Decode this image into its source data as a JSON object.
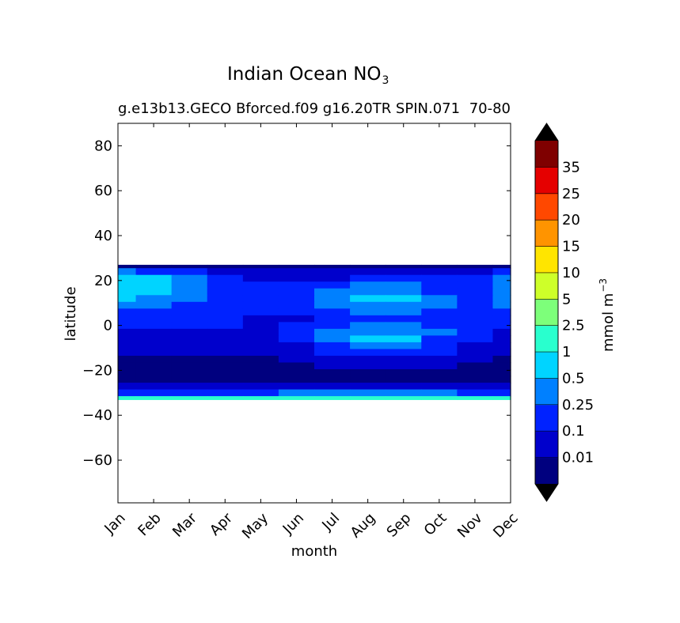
{
  "title": {
    "main": "Indian Ocean NO",
    "subscript": "3"
  },
  "subtitle_left": "g.e13b13.GECO Bforced.f09 g16.20TR SPIN.071",
  "subtitle_right": "70-80",
  "colorbar": {
    "unit_prefix": "mmol m",
    "unit_exponent": "−3",
    "labels": [
      "0.01",
      "0.1",
      "0.25",
      "0.5",
      "1",
      "2.5",
      "5",
      "10",
      "15",
      "20",
      "25",
      "35"
    ],
    "colors": [
      "#00007f",
      "#0000cc",
      "#0022ff",
      "#0080ff",
      "#00d4ff",
      "#29ffce",
      "#7dff7a",
      "#ceff29",
      "#ffe500",
      "#ff9400",
      "#ff4800",
      "#e50000",
      "#7f0000"
    ],
    "under_color": "#000000",
    "over_color": "#000000"
  },
  "chart_data": {
    "type": "heatmap",
    "title": "Indian Ocean NO3",
    "subtitle": "g.e13b13.GECO Bforced.f09 g16.20TR SPIN.071 70-80",
    "xlabel": "month",
    "ylabel": "latitude",
    "x_categories": [
      "Jan",
      "Feb",
      "Mar",
      "Apr",
      "May",
      "Jun",
      "Jul",
      "Aug",
      "Sep",
      "Oct",
      "Nov",
      "Dec"
    ],
    "y_ticks": [
      80,
      60,
      40,
      20,
      0,
      -20,
      -40,
      -60
    ],
    "ylim": [
      -79,
      90
    ],
    "units": "mmol m^-3",
    "levels": [
      0,
      0.01,
      0.1,
      0.25,
      0.5,
      1,
      2.5,
      5,
      10,
      15,
      20,
      25,
      35,
      40
    ],
    "lat": [
      27,
      24,
      21,
      18,
      15,
      12,
      9,
      6,
      3,
      0,
      -3,
      -6,
      -9,
      -12,
      -15,
      -18,
      -21,
      -24,
      -27,
      -30,
      -33
    ],
    "values": [
      [
        0.005,
        0.005,
        0.005,
        0.005,
        0.005,
        0.005,
        0.005,
        0.005,
        0.005,
        0.005,
        0.005,
        0.005
      ],
      [
        0.3,
        0.15,
        0.1,
        0.05,
        0.05,
        0.03,
        0.02,
        0.02,
        0.02,
        0.03,
        0.05,
        0.2
      ],
      [
        0.8,
        0.6,
        0.3,
        0.1,
        0.05,
        0.03,
        0.05,
        0.1,
        0.1,
        0.1,
        0.15,
        0.3
      ],
      [
        0.6,
        0.5,
        0.3,
        0.2,
        0.15,
        0.1,
        0.2,
        0.3,
        0.3,
        0.2,
        0.2,
        0.3
      ],
      [
        0.6,
        0.5,
        0.3,
        0.2,
        0.2,
        0.2,
        0.3,
        0.4,
        0.4,
        0.2,
        0.2,
        0.4
      ],
      [
        0.5,
        0.4,
        0.3,
        0.2,
        0.2,
        0.2,
        0.3,
        0.6,
        0.6,
        0.3,
        0.2,
        0.4
      ],
      [
        0.3,
        0.3,
        0.2,
        0.2,
        0.2,
        0.2,
        0.3,
        0.4,
        0.4,
        0.3,
        0.2,
        0.3
      ],
      [
        0.2,
        0.2,
        0.2,
        0.15,
        0.15,
        0.15,
        0.2,
        0.3,
        0.3,
        0.2,
        0.15,
        0.2
      ],
      [
        0.15,
        0.15,
        0.12,
        0.1,
        0.08,
        0.08,
        0.15,
        0.2,
        0.2,
        0.15,
        0.12,
        0.15
      ],
      [
        0.12,
        0.12,
        0.12,
        0.1,
        0.08,
        0.1,
        0.2,
        0.3,
        0.3,
        0.15,
        0.12,
        0.12
      ],
      [
        0.08,
        0.08,
        0.08,
        0.06,
        0.08,
        0.15,
        0.3,
        0.4,
        0.4,
        0.3,
        0.15,
        0.08
      ],
      [
        0.05,
        0.05,
        0.05,
        0.04,
        0.05,
        0.1,
        0.3,
        0.6,
        0.5,
        0.2,
        0.1,
        0.05
      ],
      [
        0.03,
        0.03,
        0.03,
        0.03,
        0.03,
        0.08,
        0.2,
        0.4,
        0.3,
        0.15,
        0.06,
        0.03
      ],
      [
        0.02,
        0.02,
        0.02,
        0.02,
        0.02,
        0.04,
        0.12,
        0.2,
        0.2,
        0.1,
        0.03,
        0.02
      ],
      [
        0.005,
        0.005,
        0.005,
        0.005,
        0.005,
        0.02,
        0.05,
        0.08,
        0.08,
        0.04,
        0.01,
        0.005
      ],
      [
        0.005,
        0.005,
        0.005,
        0.005,
        0.005,
        0.005,
        0.02,
        0.03,
        0.03,
        0.02,
        0.005,
        0.005
      ],
      [
        0.005,
        0.005,
        0.005,
        0.005,
        0.005,
        0.005,
        0.005,
        0.005,
        0.005,
        0.005,
        0.005,
        0.005
      ],
      [
        0.005,
        0.005,
        0.005,
        0.005,
        0.005,
        0.005,
        0.005,
        0.005,
        0.005,
        0.005,
        0.005,
        0.005
      ],
      [
        0.02,
        0.03,
        0.03,
        0.03,
        0.05,
        0.06,
        0.08,
        0.08,
        0.08,
        0.06,
        0.04,
        0.03
      ],
      [
        0.15,
        0.15,
        0.15,
        0.2,
        0.2,
        0.25,
        0.3,
        0.35,
        0.35,
        0.3,
        0.2,
        0.15
      ],
      [
        1.5,
        1.5,
        1.5,
        1.5,
        1.5,
        1.5,
        1.5,
        1.5,
        1.5,
        1.5,
        1.5,
        1.5
      ]
    ],
    "grid": false,
    "legend": "colorbar-right"
  }
}
